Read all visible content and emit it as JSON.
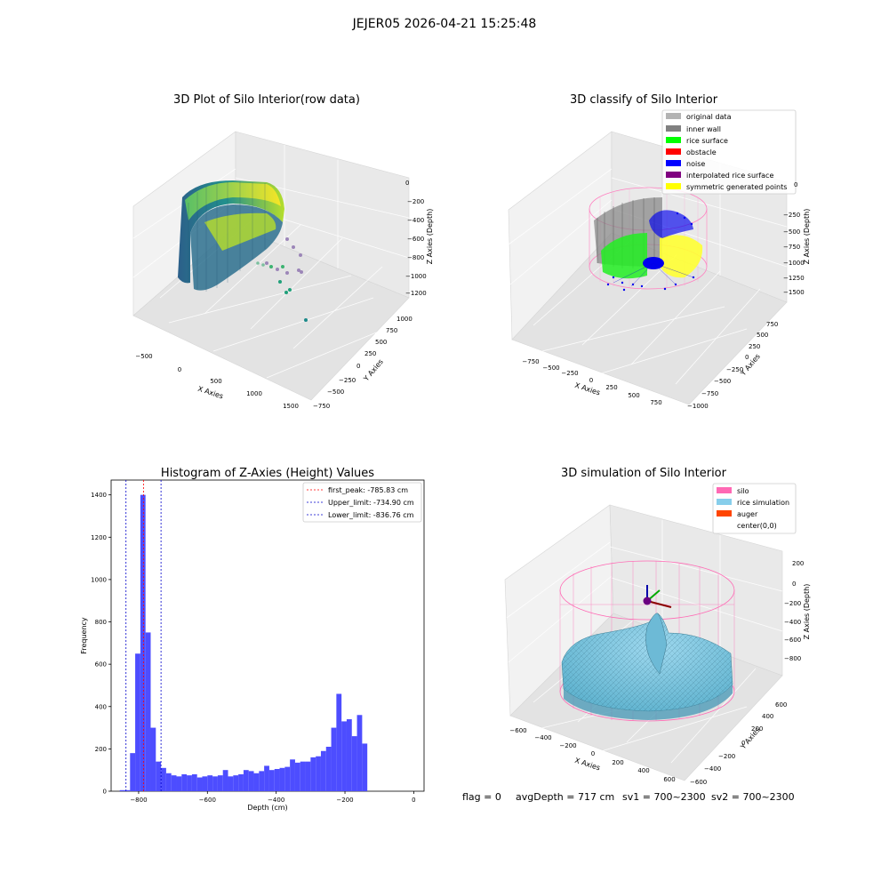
{
  "figure": {
    "suptitle": "JEJER05 2026-04-21 15:25:48",
    "footer": {
      "flag": "flag = 0",
      "avg_depth": "avgDepth = 717 cm",
      "sv1": "sv1 = 700~2300",
      "sv2": "sv2 = 700~2300"
    }
  },
  "colors": {
    "histogram_bar": "#4d4dff",
    "peak_line": "#ff0000",
    "limit_lines": "#0000cc",
    "silo_wireframe": "#ff69b4",
    "rice_simulation": "#87ceeb",
    "auger": "#ff4500",
    "inner_wall": "#808080",
    "rice_surface": "#00ff00",
    "obstacle": "#ff0000",
    "noise": "#0000ff",
    "interpolated": "#800080",
    "symmetric": "#ffff00",
    "original": "#b3b3b3"
  },
  "chart_data": [
    {
      "type": "scatter",
      "projection": "3d",
      "title": "3D Plot of Silo Interior(row data)",
      "xlabel": "X Axies",
      "ylabel": "Y Axies",
      "zlabel": "Z Axies (Depth)",
      "x_ticks": [
        "−500",
        "0",
        "500",
        "1000",
        "1500"
      ],
      "y_ticks": [
        "−750",
        "−500",
        "−250",
        "0",
        "250",
        "500",
        "750",
        "1000"
      ],
      "z_ticks": [
        "0",
        "−200",
        "−400",
        "−600",
        "−800",
        "−1000",
        "−1200"
      ],
      "colormap": "viridis"
    },
    {
      "type": "scatter",
      "projection": "3d",
      "title": "3D classify of Silo Interior",
      "xlabel": "X Axies",
      "ylabel": "Y Axies",
      "zlabel": "Z Axies (Depth)",
      "x_ticks": [
        "−750",
        "−500",
        "−250",
        "0",
        "250",
        "500",
        "750"
      ],
      "y_ticks": [
        "−1000",
        "−750",
        "−500",
        "−250",
        "0",
        "250",
        "500",
        "750"
      ],
      "z_ticks": [
        "0",
        "−250",
        "−500",
        "−750",
        "−1000",
        "−1250",
        "−1500"
      ],
      "legend": [
        "original data",
        "inner wall",
        "rice surface",
        "obstacle",
        "noise",
        "interpolated rice surface",
        "symmetric generated points"
      ],
      "legend_position": "upper-right"
    },
    {
      "type": "bar",
      "title": "Histogram of Z-Axies (Height) Values",
      "xlabel": "Depth (cm)",
      "ylabel": "Frequency",
      "xlim": [
        -880,
        30
      ],
      "ylim": [
        0,
        1470
      ],
      "x_ticks": [
        -800,
        -600,
        -400,
        -200,
        0
      ],
      "x_tick_labels": [
        "−800",
        "−600",
        "−400",
        "−200",
        "0"
      ],
      "y_ticks": [
        0,
        200,
        400,
        600,
        800,
        1000,
        1200,
        1400
      ],
      "bins_start": -855,
      "bin_width": 15,
      "values": [
        5,
        5,
        180,
        650,
        1400,
        750,
        300,
        140,
        110,
        85,
        75,
        70,
        80,
        75,
        80,
        65,
        70,
        75,
        70,
        75,
        100,
        70,
        75,
        80,
        100,
        95,
        85,
        95,
        120,
        100,
        105,
        110,
        115,
        150,
        135,
        140,
        140,
        160,
        165,
        190,
        210,
        300,
        460,
        330,
        340,
        260,
        360,
        225
      ],
      "vlines": [
        {
          "label": "first_peak: -785.83 cm",
          "x": -785.83,
          "style": "dashed",
          "color": "red"
        },
        {
          "label": "Upper_limit: -734.90 cm",
          "x": -734.9,
          "style": "dashed",
          "color": "blue"
        },
        {
          "label": "Lower_limit: -836.76 cm",
          "x": -836.76,
          "style": "dashed",
          "color": "blue"
        }
      ],
      "legend_position": "upper-right"
    },
    {
      "type": "surface",
      "projection": "3d",
      "title": "3D simulation of Silo Interior",
      "xlabel": "X Axies",
      "ylabel": "Y Axies",
      "zlabel": "Z Axies (Depth)",
      "x_ticks": [
        "−600",
        "−400",
        "−200",
        "0",
        "200",
        "400",
        "600"
      ],
      "y_ticks": [
        "−600",
        "−400",
        "−200",
        "0",
        "200",
        "400",
        "600"
      ],
      "z_ticks": [
        "200",
        "0",
        "−200",
        "−400",
        "−600",
        "−800"
      ],
      "legend": [
        "silo",
        "rice simulation",
        "auger",
        "center(0,0)"
      ],
      "legend_position": "upper-right"
    }
  ]
}
